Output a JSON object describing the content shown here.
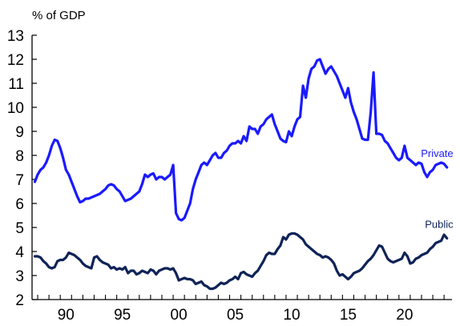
{
  "chart_data": {
    "type": "line",
    "unit_label": "% of GDP",
    "xlabel": "",
    "ylabel": "",
    "xlim": [
      1987.5,
      2024.7
    ],
    "ylim": [
      2,
      13
    ],
    "y_ticks": [
      2,
      3,
      4,
      5,
      6,
      7,
      8,
      9,
      10,
      11,
      12,
      13
    ],
    "x_ticks": [
      {
        "value": 1990,
        "label": "90"
      },
      {
        "value": 1995,
        "label": "95"
      },
      {
        "value": 2000,
        "label": "00"
      },
      {
        "value": 2005,
        "label": "05"
      },
      {
        "value": 2010,
        "label": "10"
      },
      {
        "value": 2015,
        "label": "15"
      },
      {
        "value": 2020,
        "label": "20"
      }
    ],
    "grid": false,
    "series": [
      {
        "name": "Private",
        "color": "#1a1aff",
        "points": [
          [
            1987.75,
            6.9
          ],
          [
            1988.0,
            7.2
          ],
          [
            1988.25,
            7.4
          ],
          [
            1988.5,
            7.5
          ],
          [
            1988.75,
            7.7
          ],
          [
            1989.0,
            8.0
          ],
          [
            1989.25,
            8.4
          ],
          [
            1989.5,
            8.65
          ],
          [
            1989.75,
            8.6
          ],
          [
            1990.0,
            8.3
          ],
          [
            1990.25,
            7.9
          ],
          [
            1990.5,
            7.4
          ],
          [
            1990.75,
            7.2
          ],
          [
            1991.0,
            6.9
          ],
          [
            1991.25,
            6.6
          ],
          [
            1991.5,
            6.3
          ],
          [
            1991.75,
            6.05
          ],
          [
            1992.0,
            6.1
          ],
          [
            1992.25,
            6.2
          ],
          [
            1992.5,
            6.2
          ],
          [
            1992.75,
            6.25
          ],
          [
            1993.0,
            6.3
          ],
          [
            1993.25,
            6.35
          ],
          [
            1993.5,
            6.4
          ],
          [
            1993.75,
            6.5
          ],
          [
            1994.0,
            6.6
          ],
          [
            1994.25,
            6.75
          ],
          [
            1994.5,
            6.8
          ],
          [
            1994.75,
            6.75
          ],
          [
            1995.0,
            6.6
          ],
          [
            1995.25,
            6.5
          ],
          [
            1995.5,
            6.3
          ],
          [
            1995.75,
            6.1
          ],
          [
            1996.0,
            6.15
          ],
          [
            1996.25,
            6.2
          ],
          [
            1996.5,
            6.3
          ],
          [
            1996.75,
            6.4
          ],
          [
            1997.0,
            6.5
          ],
          [
            1997.25,
            6.8
          ],
          [
            1997.5,
            7.2
          ],
          [
            1997.75,
            7.1
          ],
          [
            1998.0,
            7.2
          ],
          [
            1998.25,
            7.25
          ],
          [
            1998.5,
            7.0
          ],
          [
            1998.75,
            7.1
          ],
          [
            1999.0,
            7.1
          ],
          [
            1999.25,
            7.0
          ],
          [
            1999.5,
            7.1
          ],
          [
            1999.75,
            7.2
          ],
          [
            2000.0,
            7.6
          ],
          [
            2000.25,
            5.6
          ],
          [
            2000.5,
            5.35
          ],
          [
            2000.75,
            5.3
          ],
          [
            2001.0,
            5.4
          ],
          [
            2001.25,
            5.7
          ],
          [
            2001.5,
            6.0
          ],
          [
            2001.75,
            6.6
          ],
          [
            2002.0,
            7.0
          ],
          [
            2002.25,
            7.3
          ],
          [
            2002.5,
            7.6
          ],
          [
            2002.75,
            7.7
          ],
          [
            2003.0,
            7.6
          ],
          [
            2003.25,
            7.8
          ],
          [
            2003.5,
            8.0
          ],
          [
            2003.75,
            8.1
          ],
          [
            2004.0,
            7.9
          ],
          [
            2004.25,
            7.9
          ],
          [
            2004.5,
            8.1
          ],
          [
            2004.75,
            8.2
          ],
          [
            2005.0,
            8.4
          ],
          [
            2005.25,
            8.5
          ],
          [
            2005.5,
            8.5
          ],
          [
            2005.75,
            8.6
          ],
          [
            2006.0,
            8.5
          ],
          [
            2006.25,
            8.8
          ],
          [
            2006.5,
            8.6
          ],
          [
            2006.75,
            9.2
          ],
          [
            2007.0,
            9.1
          ],
          [
            2007.25,
            9.1
          ],
          [
            2007.5,
            8.9
          ],
          [
            2007.75,
            9.2
          ],
          [
            2008.0,
            9.3
          ],
          [
            2008.25,
            9.5
          ],
          [
            2008.5,
            9.6
          ],
          [
            2008.75,
            9.7
          ],
          [
            2009.0,
            9.3
          ],
          [
            2009.25,
            9.0
          ],
          [
            2009.5,
            8.7
          ],
          [
            2009.75,
            8.6
          ],
          [
            2010.0,
            8.55
          ],
          [
            2010.25,
            9.0
          ],
          [
            2010.5,
            8.8
          ],
          [
            2010.75,
            9.2
          ],
          [
            2011.0,
            9.5
          ],
          [
            2011.25,
            9.6
          ],
          [
            2011.5,
            10.9
          ],
          [
            2011.75,
            10.4
          ],
          [
            2012.0,
            11.2
          ],
          [
            2012.25,
            11.6
          ],
          [
            2012.5,
            11.7
          ],
          [
            2012.75,
            11.95
          ],
          [
            2013.0,
            12.0
          ],
          [
            2013.25,
            11.7
          ],
          [
            2013.5,
            11.4
          ],
          [
            2013.75,
            11.6
          ],
          [
            2014.0,
            11.7
          ],
          [
            2014.25,
            11.5
          ],
          [
            2014.5,
            11.3
          ],
          [
            2014.75,
            11.0
          ],
          [
            2015.0,
            10.7
          ],
          [
            2015.25,
            10.4
          ],
          [
            2015.5,
            10.8
          ],
          [
            2015.75,
            10.2
          ],
          [
            2016.0,
            9.8
          ],
          [
            2016.25,
            9.5
          ],
          [
            2016.5,
            9.1
          ],
          [
            2016.75,
            8.7
          ],
          [
            2017.0,
            8.65
          ],
          [
            2017.25,
            8.65
          ],
          [
            2017.5,
            9.8
          ],
          [
            2017.75,
            11.45
          ],
          [
            2018.0,
            8.9
          ],
          [
            2018.25,
            8.9
          ],
          [
            2018.5,
            8.85
          ],
          [
            2018.75,
            8.6
          ],
          [
            2019.0,
            8.5
          ],
          [
            2019.25,
            8.3
          ],
          [
            2019.5,
            8.1
          ],
          [
            2019.75,
            7.9
          ],
          [
            2020.0,
            7.8
          ],
          [
            2020.25,
            7.9
          ],
          [
            2020.5,
            8.4
          ],
          [
            2020.75,
            7.9
          ],
          [
            2021.0,
            7.8
          ],
          [
            2021.25,
            7.7
          ],
          [
            2021.5,
            7.6
          ],
          [
            2021.75,
            7.7
          ],
          [
            2022.0,
            7.65
          ],
          [
            2022.25,
            7.3
          ],
          [
            2022.5,
            7.1
          ],
          [
            2022.75,
            7.3
          ],
          [
            2023.0,
            7.4
          ],
          [
            2023.25,
            7.6
          ],
          [
            2023.5,
            7.65
          ],
          [
            2023.75,
            7.7
          ],
          [
            2024.0,
            7.65
          ],
          [
            2024.25,
            7.5
          ]
        ]
      },
      {
        "name": "Public",
        "color": "#0f2358",
        "points": [
          [
            1987.75,
            3.8
          ],
          [
            1988.0,
            3.8
          ],
          [
            1988.25,
            3.75
          ],
          [
            1988.5,
            3.6
          ],
          [
            1988.75,
            3.5
          ],
          [
            1989.0,
            3.35
          ],
          [
            1989.25,
            3.3
          ],
          [
            1989.5,
            3.35
          ],
          [
            1989.75,
            3.6
          ],
          [
            1990.0,
            3.65
          ],
          [
            1990.25,
            3.65
          ],
          [
            1990.5,
            3.75
          ],
          [
            1990.75,
            3.95
          ],
          [
            1991.0,
            3.9
          ],
          [
            1991.25,
            3.85
          ],
          [
            1991.5,
            3.75
          ],
          [
            1991.75,
            3.65
          ],
          [
            1992.0,
            3.5
          ],
          [
            1992.25,
            3.4
          ],
          [
            1992.5,
            3.35
          ],
          [
            1992.75,
            3.3
          ],
          [
            1993.0,
            3.75
          ],
          [
            1993.25,
            3.8
          ],
          [
            1993.5,
            3.65
          ],
          [
            1993.75,
            3.55
          ],
          [
            1994.0,
            3.5
          ],
          [
            1994.25,
            3.45
          ],
          [
            1994.5,
            3.3
          ],
          [
            1994.75,
            3.35
          ],
          [
            1995.0,
            3.25
          ],
          [
            1995.25,
            3.3
          ],
          [
            1995.5,
            3.25
          ],
          [
            1995.75,
            3.35
          ],
          [
            1996.0,
            3.1
          ],
          [
            1996.25,
            3.2
          ],
          [
            1996.5,
            3.2
          ],
          [
            1996.75,
            3.05
          ],
          [
            1997.0,
            3.1
          ],
          [
            1997.25,
            3.2
          ],
          [
            1997.5,
            3.15
          ],
          [
            1997.75,
            3.1
          ],
          [
            1998.0,
            3.25
          ],
          [
            1998.25,
            3.2
          ],
          [
            1998.5,
            3.05
          ],
          [
            1998.75,
            3.2
          ],
          [
            1999.0,
            3.25
          ],
          [
            1999.25,
            3.3
          ],
          [
            1999.5,
            3.3
          ],
          [
            1999.75,
            3.25
          ],
          [
            2000.0,
            3.3
          ],
          [
            2000.25,
            3.1
          ],
          [
            2000.5,
            2.8
          ],
          [
            2000.75,
            2.85
          ],
          [
            2001.0,
            2.9
          ],
          [
            2001.25,
            2.85
          ],
          [
            2001.5,
            2.85
          ],
          [
            2001.75,
            2.8
          ],
          [
            2002.0,
            2.65
          ],
          [
            2002.25,
            2.7
          ],
          [
            2002.5,
            2.75
          ],
          [
            2002.75,
            2.6
          ],
          [
            2003.0,
            2.55
          ],
          [
            2003.25,
            2.45
          ],
          [
            2003.5,
            2.45
          ],
          [
            2003.75,
            2.5
          ],
          [
            2004.0,
            2.6
          ],
          [
            2004.25,
            2.7
          ],
          [
            2004.5,
            2.65
          ],
          [
            2004.75,
            2.7
          ],
          [
            2005.0,
            2.8
          ],
          [
            2005.25,
            2.85
          ],
          [
            2005.5,
            2.95
          ],
          [
            2005.75,
            2.85
          ],
          [
            2006.0,
            3.1
          ],
          [
            2006.25,
            3.15
          ],
          [
            2006.5,
            3.05
          ],
          [
            2006.75,
            3.0
          ],
          [
            2007.0,
            2.95
          ],
          [
            2007.25,
            3.1
          ],
          [
            2007.5,
            3.2
          ],
          [
            2007.75,
            3.4
          ],
          [
            2008.0,
            3.6
          ],
          [
            2008.25,
            3.85
          ],
          [
            2008.5,
            3.95
          ],
          [
            2008.75,
            3.9
          ],
          [
            2009.0,
            3.9
          ],
          [
            2009.25,
            4.1
          ],
          [
            2009.5,
            4.25
          ],
          [
            2009.75,
            4.6
          ],
          [
            2010.0,
            4.5
          ],
          [
            2010.25,
            4.7
          ],
          [
            2010.5,
            4.75
          ],
          [
            2010.75,
            4.75
          ],
          [
            2011.0,
            4.7
          ],
          [
            2011.25,
            4.6
          ],
          [
            2011.5,
            4.5
          ],
          [
            2011.75,
            4.3
          ],
          [
            2012.0,
            4.2
          ],
          [
            2012.25,
            4.1
          ],
          [
            2012.5,
            4.0
          ],
          [
            2012.75,
            3.9
          ],
          [
            2013.0,
            3.85
          ],
          [
            2013.25,
            3.75
          ],
          [
            2013.5,
            3.8
          ],
          [
            2013.75,
            3.75
          ],
          [
            2014.0,
            3.65
          ],
          [
            2014.25,
            3.5
          ],
          [
            2014.5,
            3.2
          ],
          [
            2014.75,
            3.0
          ],
          [
            2015.0,
            3.05
          ],
          [
            2015.25,
            2.95
          ],
          [
            2015.5,
            2.85
          ],
          [
            2015.75,
            2.95
          ],
          [
            2016.0,
            3.1
          ],
          [
            2016.25,
            3.15
          ],
          [
            2016.5,
            3.2
          ],
          [
            2016.75,
            3.3
          ],
          [
            2017.0,
            3.45
          ],
          [
            2017.25,
            3.6
          ],
          [
            2017.5,
            3.7
          ],
          [
            2017.75,
            3.85
          ],
          [
            2018.0,
            4.05
          ],
          [
            2018.25,
            4.25
          ],
          [
            2018.5,
            4.2
          ],
          [
            2018.75,
            3.95
          ],
          [
            2019.0,
            3.7
          ],
          [
            2019.25,
            3.6
          ],
          [
            2019.5,
            3.55
          ],
          [
            2019.75,
            3.6
          ],
          [
            2020.0,
            3.65
          ],
          [
            2020.25,
            3.7
          ],
          [
            2020.5,
            3.95
          ],
          [
            2020.75,
            3.8
          ],
          [
            2021.0,
            3.5
          ],
          [
            2021.25,
            3.55
          ],
          [
            2021.5,
            3.7
          ],
          [
            2021.75,
            3.75
          ],
          [
            2022.0,
            3.85
          ],
          [
            2022.25,
            3.9
          ],
          [
            2022.5,
            3.95
          ],
          [
            2022.75,
            4.1
          ],
          [
            2023.0,
            4.2
          ],
          [
            2023.25,
            4.35
          ],
          [
            2023.5,
            4.4
          ],
          [
            2023.75,
            4.45
          ],
          [
            2024.0,
            4.7
          ],
          [
            2024.25,
            4.55
          ]
        ]
      }
    ]
  }
}
